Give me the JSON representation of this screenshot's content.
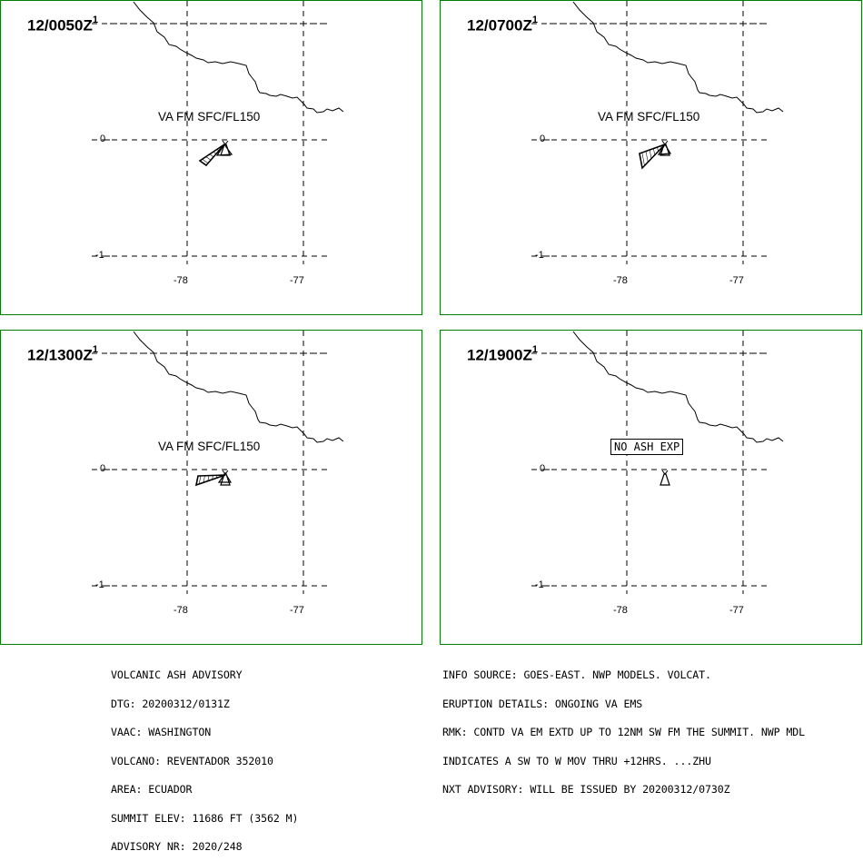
{
  "panels": [
    {
      "time": "12/0050Z",
      "superscript": "1",
      "label": "VA FM SFC/FL150",
      "ash": "tri"
    },
    {
      "time": "12/0700Z",
      "superscript": "1",
      "label": "VA FM SFC/FL150",
      "ash": "tri"
    },
    {
      "time": "12/1300Z",
      "superscript": "1",
      "label": "VA FM SFC/FL150",
      "ash": "tri"
    },
    {
      "time": "12/1900Z",
      "superscript": "1",
      "label": "NO ASH EXP",
      "ash": "none"
    }
  ],
  "axes": {
    "lat_ticks": [
      "0",
      "-1"
    ],
    "lon_ticks": [
      "-78",
      "-77"
    ]
  },
  "advisory_left": [
    "VOLCANIC ASH ADVISORY",
    "DTG: 20200312/0131Z",
    "VAAC: WASHINGTON",
    "VOLCANO: REVENTADOR 352010",
    "AREA: ECUADOR",
    "SUMMIT ELEV: 11686 FT (3562 M)",
    "ADVISORY NR: 2020/248"
  ],
  "advisory_right": [
    "INFO SOURCE: GOES-EAST. NWP MODELS. VOLCAT.",
    "ERUPTION DETAILS: ONGOING VA EMS",
    "RMK: CONTD VA EM EXTD UP TO 12NM SW FM THE SUMMIT. NWP MDL",
    "INDICATES A SW TO W MOV THRU +12HRS. ...ZHU",
    "NXT ADVISORY: WILL BE ISSUED BY 20200312/0730Z"
  ],
  "colors": {
    "border": "#008000",
    "ink": "#000000"
  }
}
